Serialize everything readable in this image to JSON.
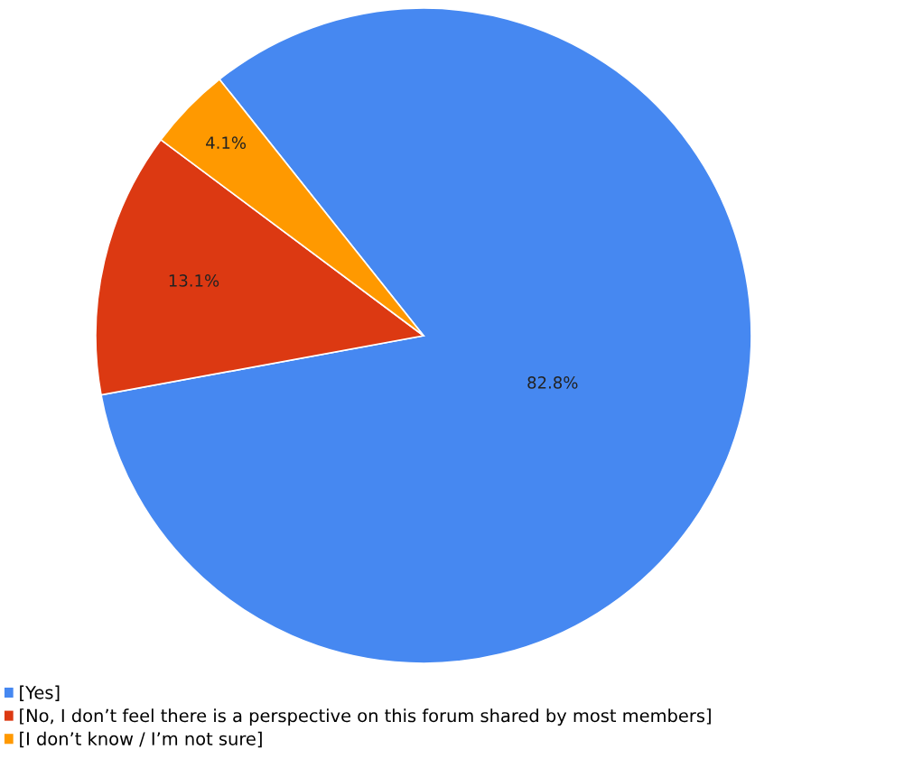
{
  "chart_data": {
    "type": "pie",
    "categories": [
      "[Yes]",
      "[No, I don’t feel there is a perspective on this forum shared by most members]",
      "[I don’t know / I’m not sure]"
    ],
    "values": [
      82.8,
      13.1,
      4.1
    ],
    "colors": [
      "#4688f1",
      "#dc3912",
      "#ff9900"
    ],
    "value_labels": [
      "82.8%",
      "13.1%",
      "4.1%"
    ],
    "legend": "bottom left"
  }
}
